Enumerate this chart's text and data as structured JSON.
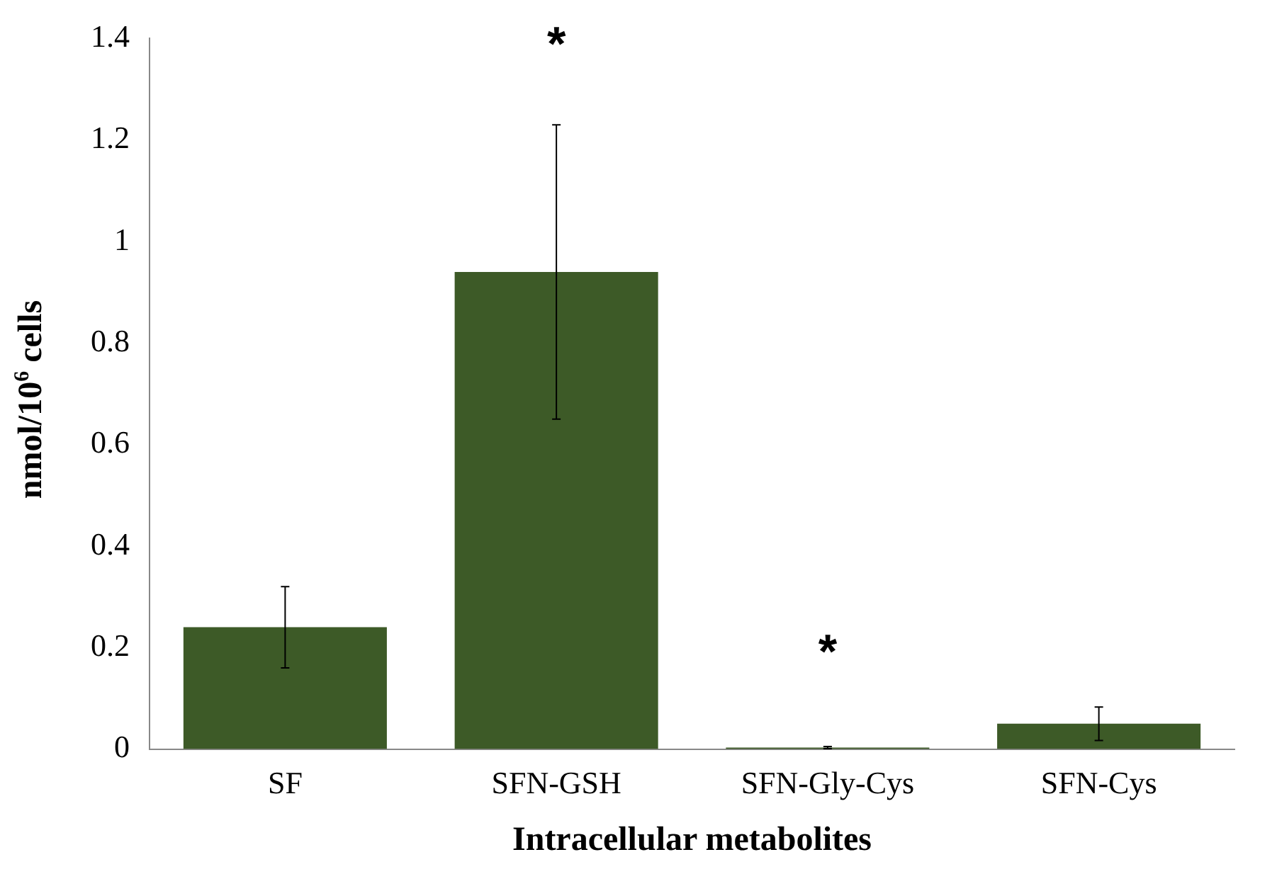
{
  "chart_data": {
    "type": "bar",
    "xlabel": "Intracellular metabolites",
    "ylabel": "nmol/10$^{6}$ cells",
    "categories": [
      "SF",
      "SFN-GSH",
      "SFN-Gly-Cys",
      "SFN-Cys"
    ],
    "values": [
      0.24,
      0.94,
      0.003,
      0.05
    ],
    "errors": [
      0.08,
      0.29,
      0.002,
      0.033
    ],
    "color": "#3d5a27",
    "ylim": [
      0,
      1.4
    ],
    "yticks": [
      0,
      0.2,
      0.4,
      0.6,
      0.8,
      1,
      1.2,
      1.4
    ],
    "grid": false,
    "legend": false,
    "annotations": [
      "*",
      "*"
    ]
  }
}
